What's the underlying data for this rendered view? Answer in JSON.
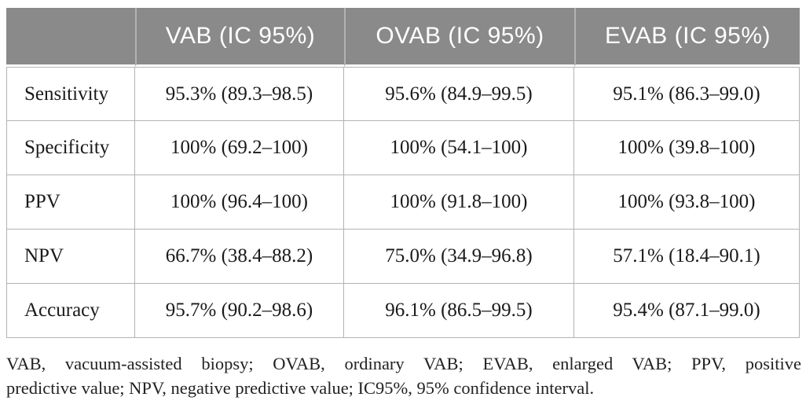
{
  "table": {
    "headers": [
      "",
      "VAB (IC 95%)",
      "OVAB (IC 95%)",
      "EVAB (IC 95%)"
    ],
    "rows": [
      {
        "label": "Sensitivity",
        "values": [
          "95.3% (89.3–98.5)",
          "95.6% (84.9–99.5)",
          "95.1% (86.3–99.0)"
        ]
      },
      {
        "label": "Specificity",
        "values": [
          "100% (69.2–100)",
          "100% (54.1–100)",
          "100% (39.8–100)"
        ]
      },
      {
        "label": "PPV",
        "values": [
          "100% (96.4–100)",
          "100% (91.8–100)",
          "100% (93.8–100)"
        ]
      },
      {
        "label": "NPV",
        "values": [
          "66.7% (38.4–88.2)",
          "75.0% (34.9–96.8)",
          "57.1% (18.4–90.1)"
        ]
      },
      {
        "label": "Accuracy",
        "values": [
          "95.7% (90.2–98.6)",
          "96.1% (86.5–99.5)",
          "95.4% (87.1–99.0)"
        ]
      }
    ]
  },
  "footnote": {
    "lines": [
      "VAB, vacuum-assisted biopsy; OVAB, ordinary VAB; EVAB, enlarged VAB; PPV, positive",
      "predictive value; NPV, negative predictive value; IC95%, 95% confidence interval."
    ],
    "full_text": "VAB, vacuum-assisted biopsy; OVAB, ordinary VAB; EVAB, enlarged VAB; PPV, positive predictive value; NPV, negative predictive value; IC95%, 95% confidence interval."
  },
  "colors": {
    "header_bg": "#8a8a8a",
    "header_text": "#ffffff",
    "grid_line": "#b3b3b3",
    "body_text": "#1a1a1a"
  }
}
